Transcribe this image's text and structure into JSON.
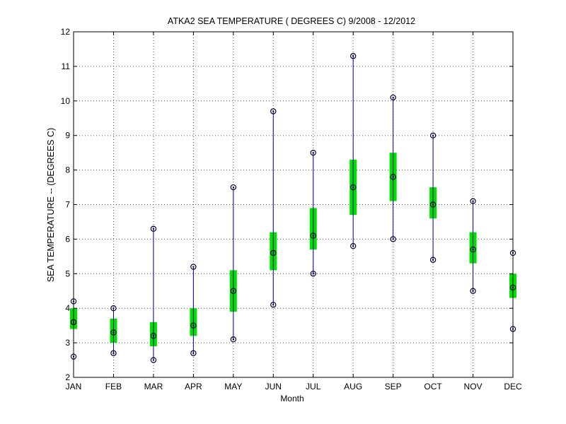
{
  "chart_data": {
    "type": "box",
    "title": "ATKA2  SEA TEMPERATURE ( DEGREES C) 9/2008 - 12/2012",
    "xlabel": "Month",
    "ylabel": "SEA TEMPERATURE -- (DEGREES C)",
    "categories": [
      "JAN",
      "FEB",
      "MAR",
      "APR",
      "MAY",
      "JUN",
      "JUL",
      "AUG",
      "SEP",
      "OCT",
      "NOV",
      "DEC"
    ],
    "ylim": [
      2,
      12
    ],
    "yticks": [
      "2",
      "3",
      "4",
      "5",
      "6",
      "7",
      "8",
      "9",
      "10",
      "11",
      "12"
    ],
    "grid": true,
    "series": [
      {
        "min": 2.6,
        "q1": 3.4,
        "median": 3.6,
        "q3": 4.0,
        "max": 4.2
      },
      {
        "min": 2.7,
        "q1": 3.0,
        "median": 3.3,
        "q3": 3.7,
        "max": 4.0
      },
      {
        "min": 2.5,
        "q1": 2.9,
        "median": 3.2,
        "q3": 3.6,
        "max": 6.3
      },
      {
        "min": 2.7,
        "q1": 3.2,
        "median": 3.5,
        "q3": 4.0,
        "max": 5.2
      },
      {
        "min": 3.1,
        "q1": 3.9,
        "median": 4.5,
        "q3": 5.1,
        "max": 7.5
      },
      {
        "min": 4.1,
        "q1": 5.1,
        "median": 5.6,
        "q3": 6.2,
        "max": 9.7
      },
      {
        "min": 5.0,
        "q1": 5.7,
        "median": 6.1,
        "q3": 6.9,
        "max": 8.5
      },
      {
        "min": 5.8,
        "q1": 6.7,
        "median": 7.5,
        "q3": 8.3,
        "max": 11.3
      },
      {
        "min": 6.0,
        "q1": 7.1,
        "median": 7.8,
        "q3": 8.5,
        "max": 10.1
      },
      {
        "min": 5.4,
        "q1": 6.6,
        "median": 7.0,
        "q3": 7.5,
        "max": 9.0
      },
      {
        "min": 4.5,
        "q1": 5.3,
        "median": 5.7,
        "q3": 6.2,
        "max": 7.1
      },
      {
        "min": 3.4,
        "q1": 4.3,
        "median": 4.6,
        "q3": 5.0,
        "max": 5.6
      }
    ],
    "colors": {
      "whisker": "#0000a0",
      "box": "#00e000",
      "marker": "#000033",
      "grid": "#555555"
    }
  }
}
